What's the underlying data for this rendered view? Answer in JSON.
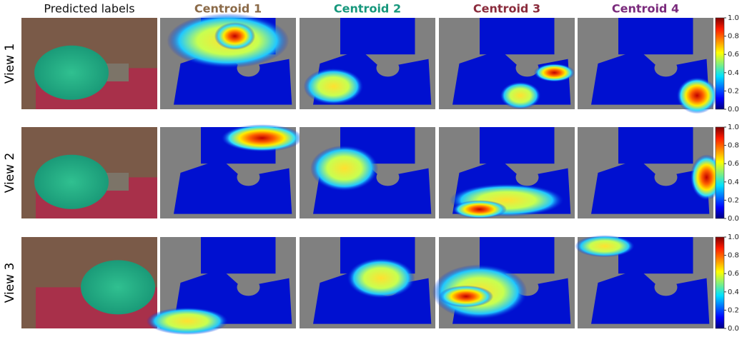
{
  "columns": [
    {
      "label": "Predicted labels",
      "color": "#111111"
    },
    {
      "label": "Centroid 1",
      "color": "#8b6a48"
    },
    {
      "label": "Centroid 2",
      "color": "#16977c"
    },
    {
      "label": "Centroid 3",
      "color": "#8a2b3c"
    },
    {
      "label": "Centroid 4",
      "color": "#7a2a7c"
    }
  ],
  "rows": [
    "View 1",
    "View 2",
    "View 3"
  ],
  "colorbar": {
    "lim": [
      0,
      1
    ],
    "ticks": [
      {
        "value": 0,
        "label": "0.0"
      },
      {
        "value": 0.2,
        "label": "0.2"
      },
      {
        "value": 0.4,
        "label": "0.4"
      },
      {
        "value": 0.6,
        "label": "0.6"
      },
      {
        "value": 0.8,
        "label": "0.8"
      },
      {
        "value": 1,
        "label": "1.0"
      }
    ]
  }
}
